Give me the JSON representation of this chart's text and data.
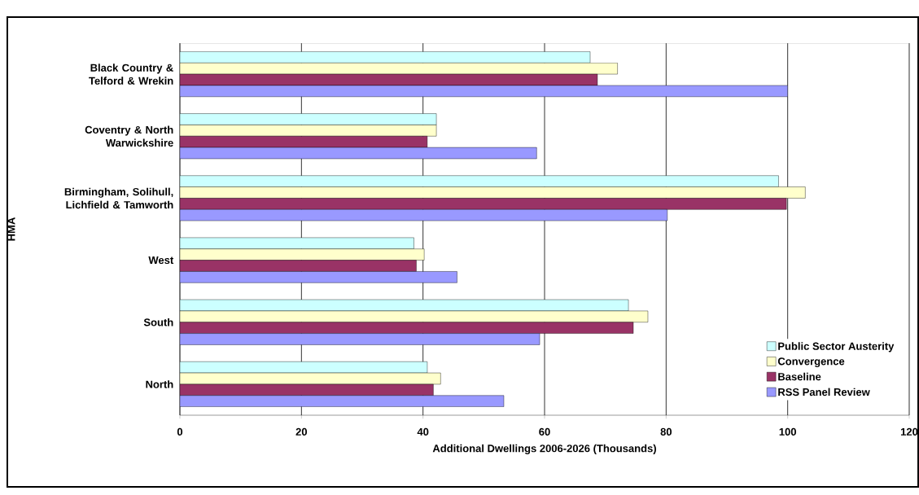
{
  "chart_data": {
    "type": "bar",
    "orientation": "horizontal",
    "xlabel": "Additional Dwellings 2006-2026  (Thousands)",
    "ylabel": "HMA",
    "categories": [
      "Black Country & Telford & Wrekin",
      "Coventry & North Warwickshire",
      "Birmingham, Solihull, Lichfield & Tamworth",
      "West",
      "South",
      "North"
    ],
    "series": [
      {
        "name": "Public Sector Austerity",
        "color": "#ccffff",
        "values": [
          67.5,
          42.2,
          98.5,
          38.5,
          73.8,
          40.7
        ]
      },
      {
        "name": "Convergence",
        "color": "#ffffcc",
        "values": [
          72.0,
          42.2,
          102.9,
          40.2,
          77.0,
          42.9
        ]
      },
      {
        "name": "Baseline",
        "color": "#993366",
        "values": [
          68.7,
          40.7,
          99.8,
          38.9,
          74.6,
          41.7
        ]
      },
      {
        "name": "RSS Panel Review",
        "color": "#9999ff",
        "values": [
          100.0,
          58.7,
          80.2,
          45.6,
          59.2,
          53.3
        ]
      }
    ],
    "xlim": [
      0,
      120
    ],
    "xticks": [
      0,
      20,
      40,
      60,
      80,
      100,
      120
    ],
    "grid": "x",
    "legend": "bottom right"
  }
}
